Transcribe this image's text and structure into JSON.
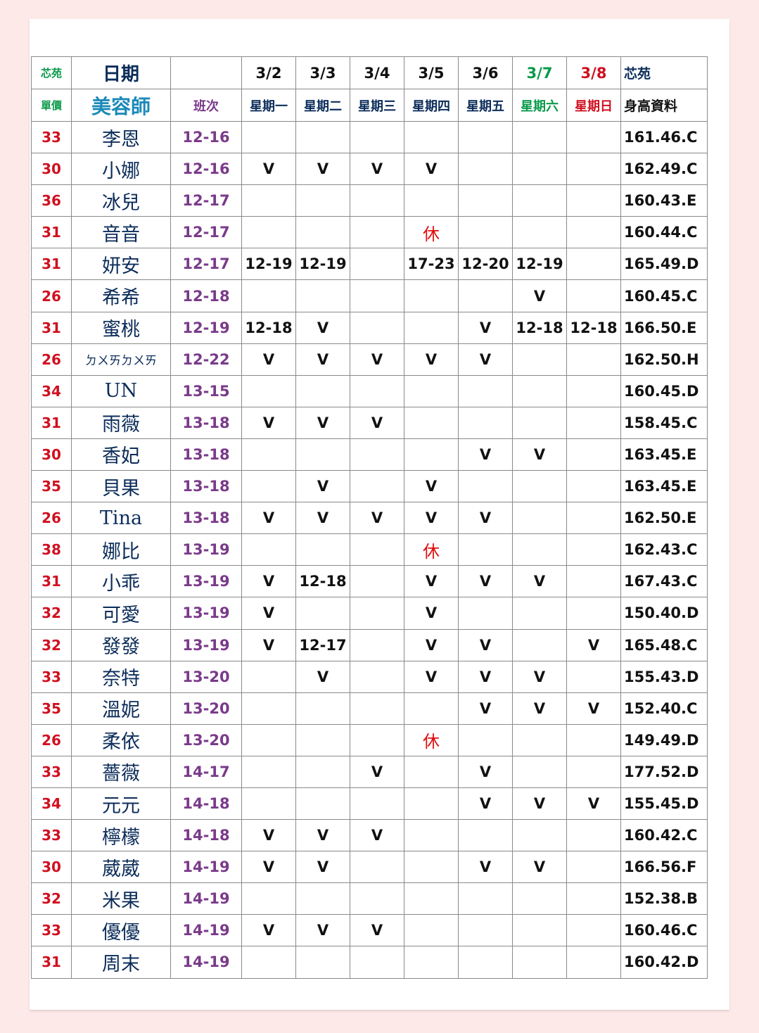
{
  "header": {
    "brand": "芯苑",
    "date_label": "日期",
    "unit_price_label": "單價",
    "beautician_label": "美容師",
    "shift_label": "班次",
    "height_brand": "芯苑",
    "height_label": "身高資料",
    "dates": [
      "3/2",
      "3/3",
      "3/4",
      "3/5",
      "3/6",
      "3/7",
      "3/8"
    ],
    "weekdays": [
      "星期一",
      "星期二",
      "星期三",
      "星期四",
      "星期五",
      "星期六",
      "星期日"
    ],
    "date_colors": [
      "#111111",
      "#111111",
      "#111111",
      "#111111",
      "#111111",
      "#0a9a4a",
      "#d01020"
    ],
    "weekday_colors": [
      "#0c2d5a",
      "#0c2d5a",
      "#0c2d5a",
      "#0c2d5a",
      "#0c2d5a",
      "#0a9a4a",
      "#d01020"
    ]
  },
  "rest_label": "休",
  "rows": [
    {
      "price": "33",
      "name": "李恩",
      "shift": "12-16",
      "days": [
        "",
        "",
        "",
        "",
        "",
        "",
        ""
      ],
      "height": "161.46.C"
    },
    {
      "price": "30",
      "name": "小娜",
      "shift": "12-16",
      "days": [
        "V",
        "V",
        "V",
        "V",
        "",
        "",
        ""
      ],
      "height": "162.49.C"
    },
    {
      "price": "36",
      "name": "冰兒",
      "shift": "12-17",
      "days": [
        "",
        "",
        "",
        "",
        "",
        "",
        ""
      ],
      "height": "160.43.E"
    },
    {
      "price": "31",
      "name": "音音",
      "shift": "12-17",
      "days": [
        "",
        "",
        "",
        "休",
        "",
        "",
        ""
      ],
      "height": "160.44.C"
    },
    {
      "price": "31",
      "name": "妍安",
      "shift": "12-17",
      "days": [
        "12-19",
        "12-19",
        "",
        "17-23",
        "12-20",
        "12-19",
        ""
      ],
      "height": "165.49.D"
    },
    {
      "price": "26",
      "name": "希希",
      "shift": "12-18",
      "days": [
        "",
        "",
        "",
        "",
        "",
        "V",
        ""
      ],
      "height": "160.45.C"
    },
    {
      "price": "31",
      "name": "蜜桃",
      "shift": "12-19",
      "days": [
        "12-18",
        "V",
        "",
        "",
        "V",
        "12-18",
        "12-18"
      ],
      "height": "166.50.E"
    },
    {
      "price": "26",
      "name": "ㄉㄨㄞㄉㄨㄞ",
      "shift": "12-22",
      "days": [
        "V",
        "V",
        "V",
        "V",
        "V",
        "",
        ""
      ],
      "height": "162.50.H"
    },
    {
      "price": "34",
      "name": "UN",
      "shift": "13-15",
      "days": [
        "",
        "",
        "",
        "",
        "",
        "",
        ""
      ],
      "height": "160.45.D"
    },
    {
      "price": "31",
      "name": "雨薇",
      "shift": "13-18",
      "days": [
        "V",
        "V",
        "V",
        "",
        "",
        "",
        ""
      ],
      "height": "158.45.C"
    },
    {
      "price": "30",
      "name": "香妃",
      "shift": "13-18",
      "days": [
        "",
        "",
        "",
        "",
        "V",
        "V",
        ""
      ],
      "height": "163.45.E"
    },
    {
      "price": "35",
      "name": "貝果",
      "shift": "13-18",
      "days": [
        "",
        "V",
        "",
        "V",
        "",
        "",
        ""
      ],
      "height": "163.45.E"
    },
    {
      "price": "26",
      "name": "Tina",
      "shift": "13-18",
      "days": [
        "V",
        "V",
        "V",
        "V",
        "V",
        "",
        ""
      ],
      "height": "162.50.E"
    },
    {
      "price": "38",
      "name": "娜比",
      "shift": "13-19",
      "days": [
        "",
        "",
        "",
        "休",
        "",
        "",
        ""
      ],
      "height": "162.43.C"
    },
    {
      "price": "31",
      "name": "小乖",
      "shift": "13-19",
      "days": [
        "V",
        "12-18",
        "",
        "V",
        "V",
        "V",
        ""
      ],
      "height": "167.43.C"
    },
    {
      "price": "32",
      "name": "可愛",
      "shift": "13-19",
      "days": [
        "V",
        "",
        "",
        "V",
        "",
        "",
        ""
      ],
      "height": "150.40.D"
    },
    {
      "price": "32",
      "name": "發發",
      "shift": "13-19",
      "days": [
        "V",
        "12-17",
        "",
        "V",
        "V",
        "",
        "V"
      ],
      "height": "165.48.C"
    },
    {
      "price": "33",
      "name": "奈特",
      "shift": "13-20",
      "days": [
        "",
        "V",
        "",
        "V",
        "V",
        "V",
        ""
      ],
      "height": "155.43.D"
    },
    {
      "price": "35",
      "name": "溫妮",
      "shift": "13-20",
      "days": [
        "",
        "",
        "",
        "",
        "V",
        "V",
        "V"
      ],
      "height": "152.40.C"
    },
    {
      "price": "26",
      "name": "柔依",
      "shift": "13-20",
      "days": [
        "",
        "",
        "",
        "休",
        "",
        "",
        ""
      ],
      "height": "149.49.D"
    },
    {
      "price": "33",
      "name": "薔薇",
      "shift": "14-17",
      "days": [
        "",
        "",
        "V",
        "",
        "V",
        "",
        ""
      ],
      "height": "177.52.D"
    },
    {
      "price": "34",
      "name": "元元",
      "shift": "14-18",
      "days": [
        "",
        "",
        "",
        "",
        "V",
        "V",
        "V"
      ],
      "height": "155.45.D"
    },
    {
      "price": "33",
      "name": "檸檬",
      "shift": "14-18",
      "days": [
        "V",
        "V",
        "V",
        "",
        "",
        "",
        ""
      ],
      "height": "160.42.C"
    },
    {
      "price": "30",
      "name": "葳葳",
      "shift": "14-19",
      "days": [
        "V",
        "V",
        "",
        "",
        "V",
        "V",
        ""
      ],
      "height": "166.56.F"
    },
    {
      "price": "32",
      "name": "米果",
      "shift": "14-19",
      "days": [
        "",
        "",
        "",
        "",
        "",
        "",
        ""
      ],
      "height": "152.38.B"
    },
    {
      "price": "33",
      "name": "優優",
      "shift": "14-19",
      "days": [
        "V",
        "V",
        "V",
        "",
        "",
        "",
        ""
      ],
      "height": "160.46.C"
    },
    {
      "price": "31",
      "name": "周末",
      "shift": "14-19",
      "days": [
        "",
        "",
        "",
        "",
        "",
        "",
        ""
      ],
      "height": "160.42.D"
    }
  ]
}
